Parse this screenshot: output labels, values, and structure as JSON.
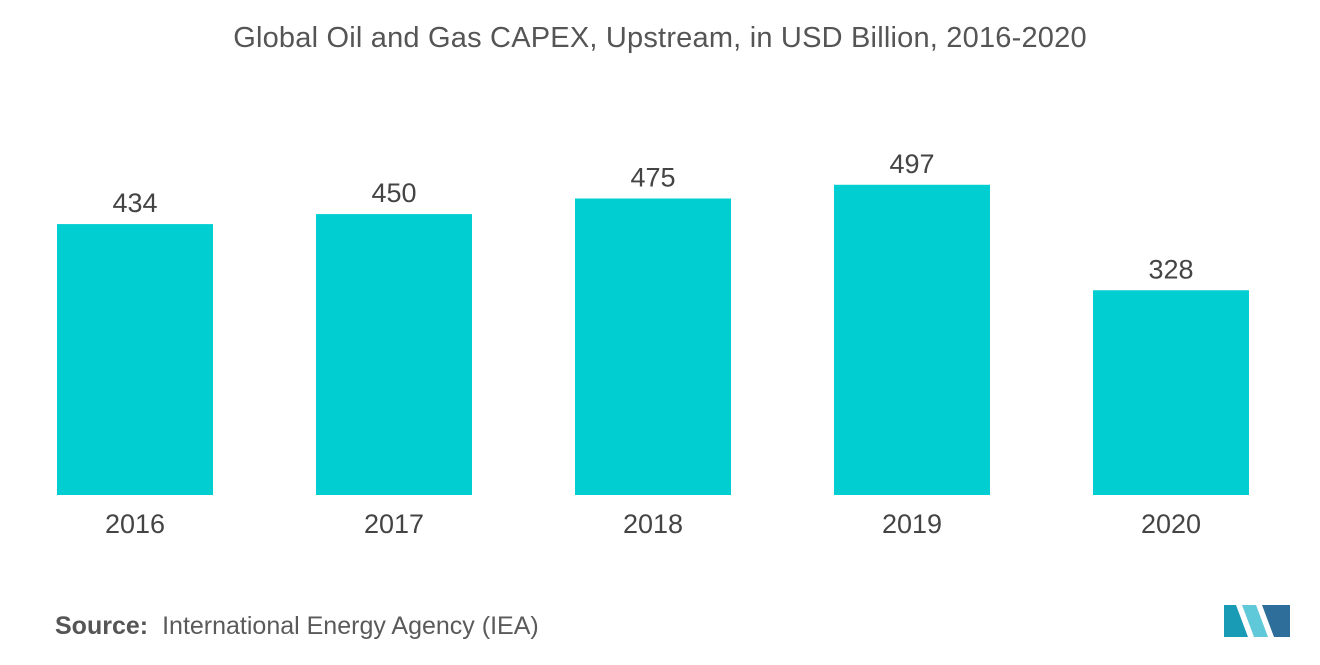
{
  "chart_data": {
    "type": "bar",
    "title": "Global Oil and Gas CAPEX, Upstream, in USD Billion, 2016-2020",
    "categories": [
      "2016",
      "2017",
      "2018",
      "2019",
      "2020"
    ],
    "values": [
      434,
      450,
      475,
      497,
      328
    ],
    "xlabel": "",
    "ylabel": "",
    "ylim": [
      0,
      600
    ],
    "grid": false,
    "legend": "none",
    "bar_color": "#00ced1",
    "label_color": "#444444"
  },
  "source": {
    "label": "Source:",
    "text": "International Energy Agency (IEA)"
  },
  "logo": {
    "icon": "mordor-intelligence-logo-icon",
    "colors": [
      "#1a9bb5",
      "#5fc9d9",
      "#2d6f9a"
    ]
  }
}
